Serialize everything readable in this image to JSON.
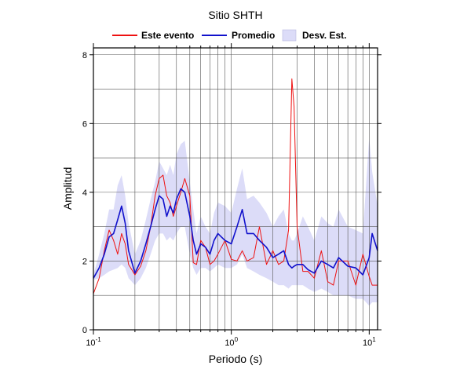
{
  "chart_data": {
    "type": "line",
    "title": "Sitio SHTH",
    "xlabel": "Periodo (s)",
    "ylabel": "Amplitud",
    "xscale": "log",
    "xlim": [
      0.1,
      11.5
    ],
    "ylim": [
      0,
      8.2
    ],
    "grid": true,
    "legend_position": "top",
    "x_ticks": [
      {
        "value": 0.1,
        "base": "10",
        "exp": "-1"
      },
      {
        "value": 1,
        "label": "10",
        "sup": "0"
      },
      {
        "value": 10,
        "label": "10",
        "sup": "1"
      }
    ],
    "y_ticks": [
      0,
      2,
      4,
      6,
      8
    ],
    "x": [
      0.1,
      0.11,
      0.12,
      0.13,
      0.14,
      0.15,
      0.16,
      0.17,
      0.18,
      0.2,
      0.22,
      0.24,
      0.26,
      0.28,
      0.3,
      0.32,
      0.34,
      0.36,
      0.38,
      0.4,
      0.43,
      0.46,
      0.5,
      0.53,
      0.56,
      0.6,
      0.65,
      0.7,
      0.75,
      0.8,
      0.9,
      1.0,
      1.1,
      1.2,
      1.3,
      1.45,
      1.6,
      1.8,
      2.0,
      2.2,
      2.4,
      2.6,
      2.75,
      2.85,
      3.0,
      3.3,
      3.6,
      4.0,
      4.5,
      5.0,
      5.5,
      6.0,
      7.0,
      8.0,
      9.0,
      10.0,
      10.5,
      11.5
    ],
    "series": [
      {
        "name": "Este evento",
        "color": "#ee1111",
        "values": [
          1.05,
          1.5,
          2.3,
          2.9,
          2.6,
          2.2,
          2.8,
          2.5,
          1.9,
          1.6,
          1.85,
          2.3,
          3.0,
          3.9,
          4.4,
          4.5,
          3.9,
          3.7,
          3.3,
          3.6,
          4.0,
          4.4,
          3.9,
          1.95,
          1.9,
          2.6,
          2.4,
          1.9,
          2.0,
          2.2,
          2.6,
          2.05,
          2.0,
          2.3,
          2.0,
          2.1,
          3.0,
          1.9,
          2.3,
          1.9,
          2.0,
          2.9,
          7.3,
          6.5,
          3.0,
          1.7,
          1.7,
          1.5,
          2.3,
          1.4,
          1.3,
          2.0,
          2.0,
          1.3,
          2.2,
          1.55,
          1.3,
          1.3
        ]
      },
      {
        "name": "Promedio",
        "color": "#1111cc",
        "values": [
          1.5,
          1.8,
          2.2,
          2.7,
          2.8,
          3.2,
          3.6,
          3.1,
          2.3,
          1.65,
          2.0,
          2.5,
          3.0,
          3.5,
          3.9,
          3.8,
          3.3,
          3.6,
          3.4,
          3.8,
          4.1,
          4.0,
          3.3,
          2.6,
          2.2,
          2.5,
          2.4,
          2.2,
          2.6,
          2.8,
          2.6,
          2.5,
          3.0,
          3.5,
          2.8,
          2.8,
          2.6,
          2.4,
          2.1,
          2.2,
          2.3,
          1.9,
          1.8,
          1.85,
          1.9,
          1.9,
          1.75,
          1.65,
          2.0,
          1.9,
          1.8,
          2.1,
          1.85,
          1.8,
          1.6,
          2.1,
          2.8,
          2.3
        ]
      },
      {
        "name": "Desv. Est.",
        "color": "#dcdcf8",
        "band": true,
        "lower": [
          1.45,
          1.5,
          1.6,
          1.7,
          1.75,
          1.8,
          1.9,
          1.8,
          1.5,
          1.3,
          1.5,
          1.8,
          2.2,
          2.6,
          2.8,
          2.8,
          2.6,
          2.7,
          2.6,
          2.8,
          3.0,
          3.0,
          2.2,
          1.8,
          1.6,
          1.8,
          1.8,
          1.7,
          1.8,
          1.9,
          1.8,
          1.8,
          1.9,
          2.2,
          1.8,
          1.7,
          1.6,
          1.5,
          1.4,
          1.3,
          1.3,
          1.2,
          1.3,
          1.3,
          1.3,
          1.3,
          1.2,
          1.1,
          1.2,
          1.1,
          1.0,
          1.0,
          1.0,
          0.9,
          0.9,
          0.7,
          0.8,
          0.8
        ],
        "upper": [
          1.6,
          2.2,
          2.8,
          3.5,
          3.5,
          4.2,
          4.5,
          3.9,
          3.1,
          2.2,
          2.6,
          3.2,
          3.8,
          4.3,
          4.9,
          4.7,
          4.5,
          4.8,
          4.5,
          5.1,
          5.4,
          5.5,
          4.3,
          3.5,
          2.8,
          3.3,
          3.0,
          2.8,
          3.4,
          3.7,
          3.6,
          3.4,
          4.1,
          4.7,
          3.8,
          3.9,
          3.7,
          3.4,
          3.0,
          3.3,
          3.5,
          2.8,
          2.6,
          2.6,
          2.8,
          3.3,
          3.0,
          2.6,
          3.3,
          3.1,
          3.0,
          3.5,
          3.0,
          2.9,
          2.8,
          5.6,
          4.6,
          3.6
        ]
      }
    ]
  }
}
